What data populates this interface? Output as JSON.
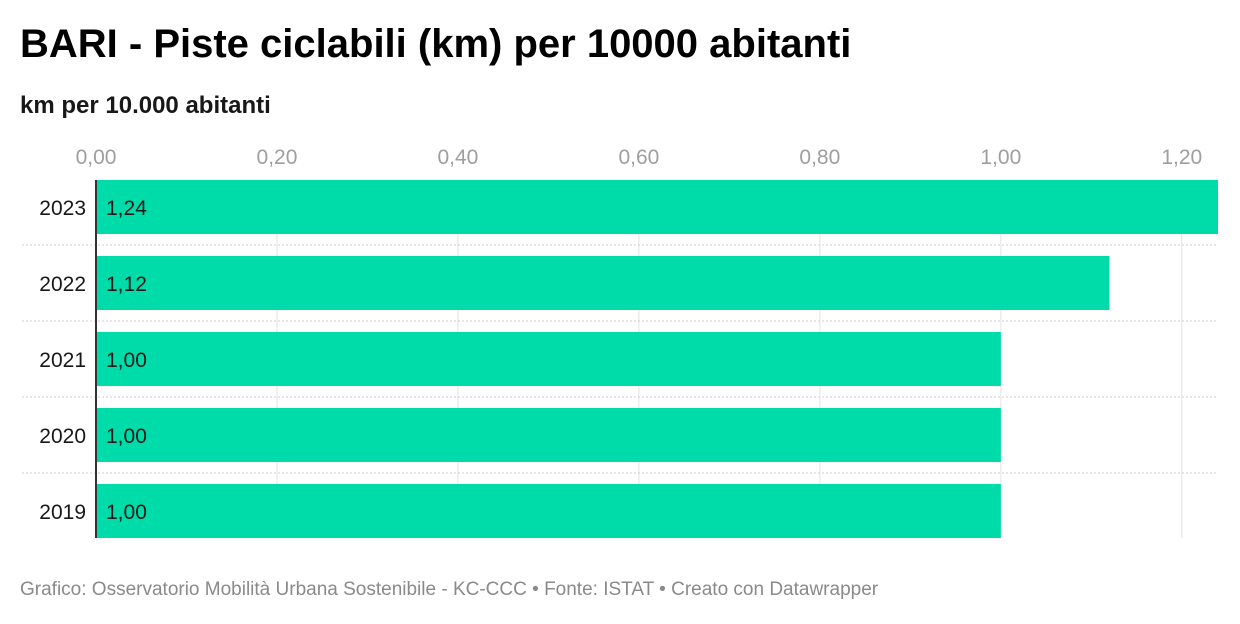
{
  "title": "BARI - Piste ciclabili (km) per 10000 abitanti",
  "subtitle": "km per 10.000 abitanti",
  "footer": {
    "chart_credit": "Grafico: Osservatorio Mobilità Urbana Sostenibile - KC-CCC",
    "separator": "•",
    "source": "Fonte: ISTAT",
    "tool": "Creato con Datawrapper"
  },
  "colors": {
    "bar": "#00dca9",
    "gridline": "#e2e2e2",
    "row_separator": "#cfcfcf",
    "tick_label": "#9e9e9e",
    "axis_line": "#333333",
    "text": "#181818"
  },
  "chart_data": {
    "type": "bar",
    "orientation": "horizontal",
    "categories": [
      "2023",
      "2022",
      "2021",
      "2020",
      "2019"
    ],
    "values": [
      1.24,
      1.12,
      1.0,
      1.0,
      1.0
    ],
    "value_labels": [
      "1,24",
      "1,12",
      "1,00",
      "1,00",
      "1,00"
    ],
    "title": "BARI - Piste ciclabili (km) per 10000 abitanti",
    "subtitle": "km per 10.000 abitanti",
    "xlim": [
      0,
      1.24
    ],
    "x_ticks": [
      0,
      0.2,
      0.4,
      0.6,
      0.8,
      1.0,
      1.2
    ],
    "x_tick_labels": [
      "0,00",
      "0,20",
      "0,40",
      "0,60",
      "0,80",
      "1,00",
      "1,20"
    ],
    "x_axis_position": "top",
    "grid": true
  }
}
